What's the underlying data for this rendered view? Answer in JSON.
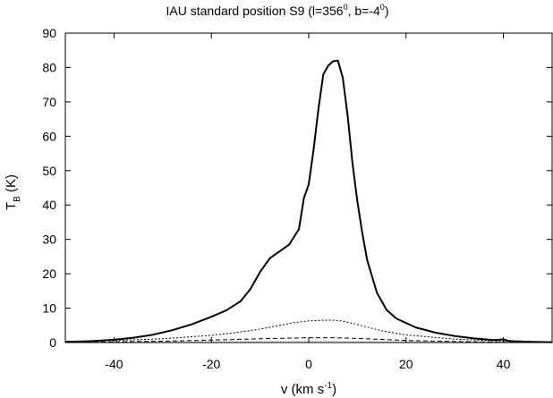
{
  "chart_data": {
    "type": "line",
    "title": {
      "text": "IAU standard position S9 (l=356",
      "sup1": "0",
      "mid": ", b=-4",
      "sup2": "0",
      "end": ")"
    },
    "xlabel": {
      "text": "v (km s",
      "sup": "-1",
      "end": ")"
    },
    "ylabel": {
      "main": "T",
      "sub": "B",
      "end": " (K)"
    },
    "xlim": [
      -50,
      50
    ],
    "ylim": [
      0,
      90
    ],
    "xticks": [
      -40,
      -20,
      0,
      20,
      40
    ],
    "yticks": [
      0,
      10,
      20,
      30,
      40,
      50,
      60,
      70,
      80,
      90
    ],
    "grid": false,
    "legend": "none",
    "series": [
      {
        "style": "solid-thick",
        "color": "#000000",
        "x": [
          -50,
          -45,
          -40,
          -36,
          -32,
          -28,
          -24,
          -20,
          -17,
          -14,
          -12,
          -10,
          -8,
          -6,
          -4,
          -2,
          -1,
          0,
          1,
          2,
          3,
          4,
          5,
          6,
          7,
          8,
          9,
          10,
          11,
          12,
          14,
          16,
          18,
          22,
          26,
          30,
          34,
          38,
          40,
          41,
          42,
          46,
          50
        ],
        "y": [
          0.2,
          0.4,
          0.8,
          1.4,
          2.3,
          3.6,
          5.3,
          7.5,
          9.3,
          12.0,
          15.5,
          20.5,
          24.5,
          26.5,
          28.5,
          33.0,
          42.0,
          46.0,
          56.0,
          68.0,
          78.0,
          80.5,
          81.8,
          82.0,
          77.0,
          66.0,
          52.0,
          41.0,
          32.0,
          24.0,
          14.5,
          9.5,
          7.0,
          4.4,
          2.9,
          1.9,
          1.2,
          0.7,
          0.9,
          0.5,
          0.4,
          0.2,
          0.1
        ]
      },
      {
        "style": "dotted",
        "color": "#000000",
        "x": [
          -50,
          -40,
          -30,
          -20,
          -15,
          -10,
          -6,
          -3,
          0,
          3,
          5,
          7,
          9,
          12,
          15,
          20,
          30,
          40,
          50
        ],
        "y": [
          0.3,
          0.6,
          1.1,
          2.1,
          2.9,
          3.9,
          5.0,
          5.8,
          6.3,
          6.5,
          6.5,
          6.2,
          5.6,
          4.5,
          3.4,
          2.2,
          1.0,
          0.4,
          0.2
        ]
      },
      {
        "style": "dashed",
        "color": "#000000",
        "x": [
          -50,
          -40,
          -30,
          -20,
          -10,
          0,
          5,
          10,
          15,
          20,
          30,
          40,
          50
        ],
        "y": [
          0.1,
          0.2,
          0.4,
          0.7,
          1.1,
          1.4,
          1.4,
          1.2,
          0.9,
          0.6,
          0.3,
          0.1,
          0.05
        ]
      },
      {
        "style": "dotted-gray",
        "color": "#888888",
        "x": [
          -50,
          -30,
          -10,
          0,
          10,
          30,
          50
        ],
        "y": [
          0.05,
          0.15,
          0.3,
          0.35,
          0.3,
          0.15,
          0.05
        ]
      }
    ]
  }
}
